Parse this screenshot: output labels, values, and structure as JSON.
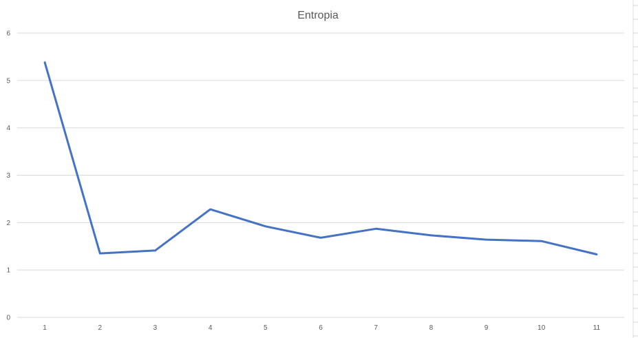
{
  "chart_data": {
    "type": "line",
    "title": "Entropia",
    "xlabel": "",
    "ylabel": "",
    "categories": [
      "1",
      "2",
      "3",
      "4",
      "5",
      "6",
      "7",
      "8",
      "9",
      "10",
      "11"
    ],
    "series": [
      {
        "values": [
          5.38,
          1.35,
          1.41,
          2.28,
          1.92,
          1.68,
          1.87,
          1.73,
          1.64,
          1.61,
          1.33
        ]
      }
    ],
    "ylim": [
      0,
      6
    ],
    "yticks": [
      "0",
      "1",
      "2",
      "3",
      "4",
      "5",
      "6"
    ],
    "grid": true,
    "legend": "none",
    "colors": {
      "series": "#4472c4",
      "grid": "#d9d9d9",
      "text": "#595959"
    }
  }
}
